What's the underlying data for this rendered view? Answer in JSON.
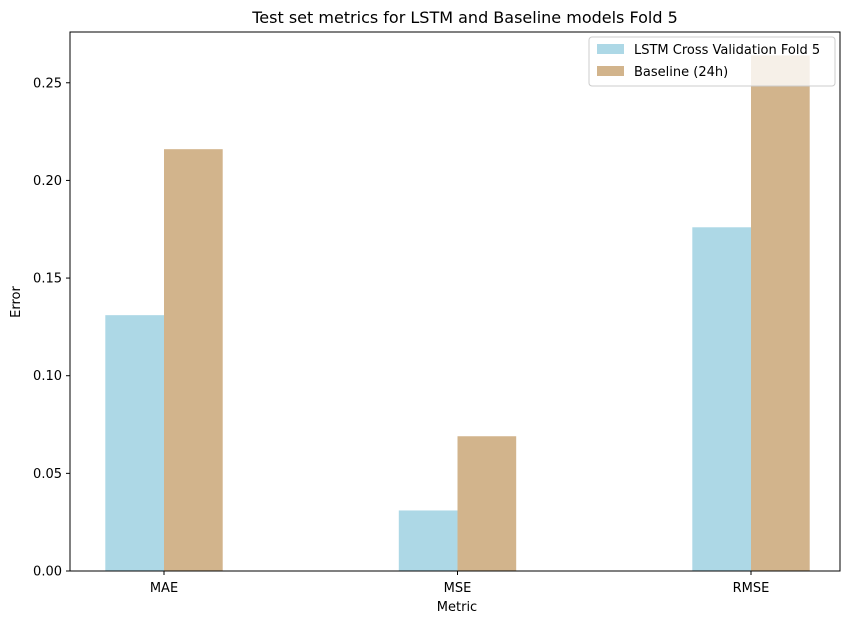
{
  "chart_data": {
    "type": "bar",
    "title": "Test set metrics for LSTM and Baseline models Fold 5",
    "xlabel": "Metric",
    "ylabel": "Error",
    "categories": [
      "MAE",
      "MSE",
      "RMSE"
    ],
    "ylim": [
      0,
      0.276
    ],
    "yticks": [
      "0.00",
      "0.05",
      "0.10",
      "0.15",
      "0.20",
      "0.25"
    ],
    "series": [
      {
        "name": "LSTM Cross Validation Fold 5",
        "color": "#add8e6",
        "values": [
          0.131,
          0.031,
          0.176
        ]
      },
      {
        "name": "Baseline (24h)",
        "color": "#d2b48c",
        "values": [
          0.216,
          0.069,
          0.264
        ]
      }
    ],
    "grid": false,
    "legend_position": "top-right"
  }
}
